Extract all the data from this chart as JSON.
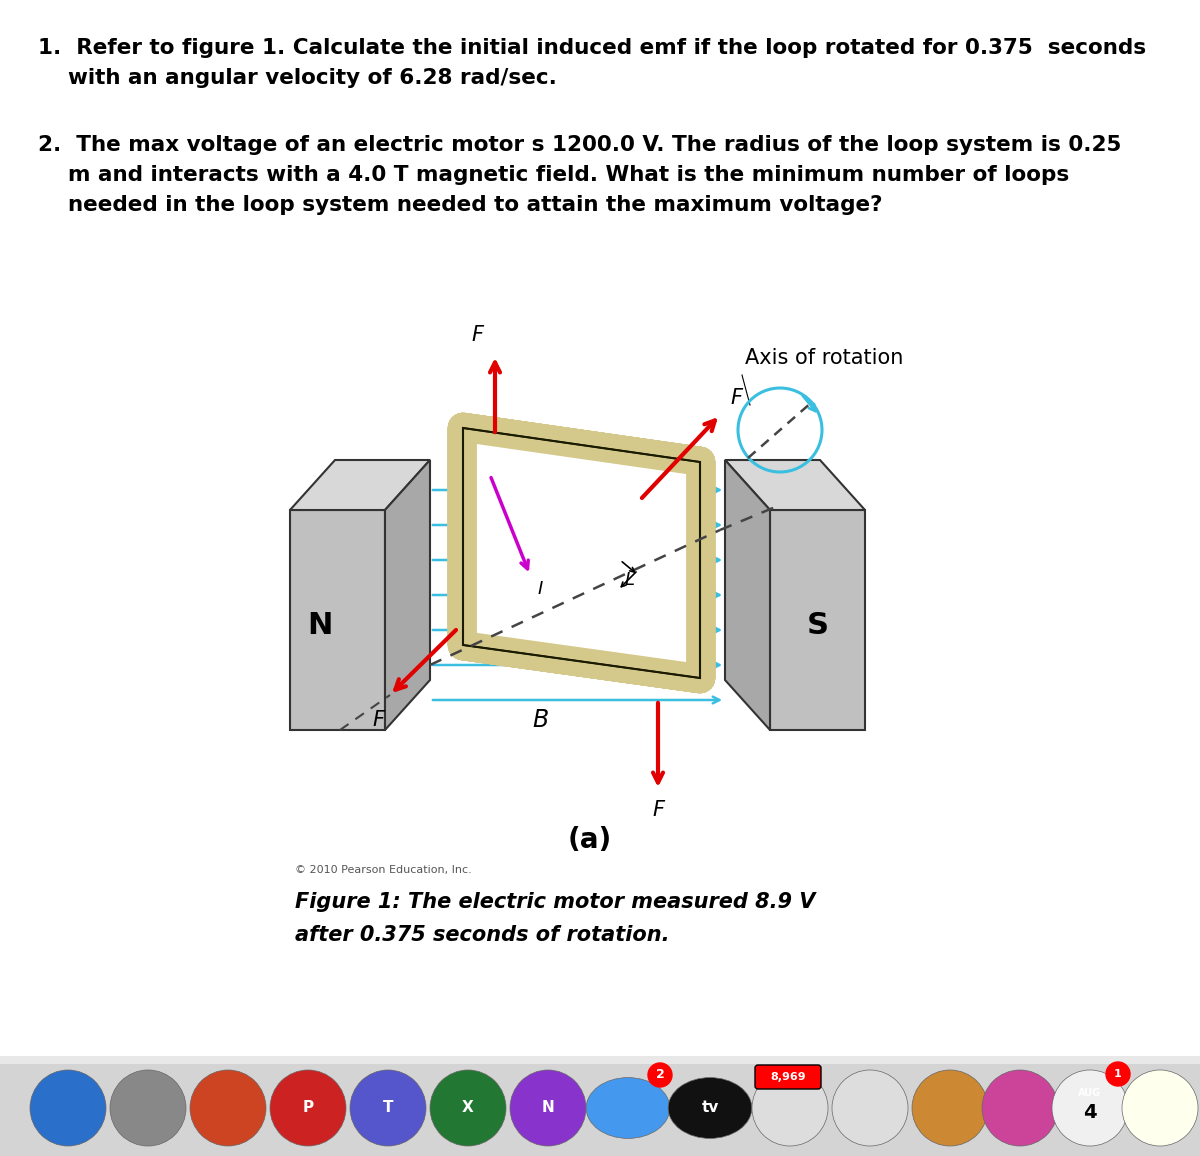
{
  "bg_color": "#ffffff",
  "q1_line1": "1.  Refer to figure 1. Calculate the initial induced emf if the loop rotated for 0.375  seconds",
  "q1_line2": "    with an angular velocity of 6.28 rad/sec.",
  "q2_line1": "2.  The max voltage of an electric motor s 1200.0 V. The radius of the loop system is 0.25",
  "q2_line2": "    m and interacts with a 4.0 T magnetic field. What is the minimum number of loops",
  "q2_line3": "    needed in the loop system needed to attain the maximum voltage?",
  "label_a": "(a)",
  "copyright": "© 2010 Pearson Education, Inc.",
  "caption_line1": "Figure 1: The electric motor measured 8.9 V",
  "caption_line2": "after 0.375 seconds of rotation.",
  "axis_of_rotation": "Axis of rotation",
  "label_N": "N",
  "label_S": "S",
  "label_B": "B",
  "label_F": "F",
  "label_I": "I",
  "label_L": "L",
  "arrow_red": "#e00000",
  "arrow_blue": "#3bbfe0",
  "magnet_color_face": "#b0b0b0",
  "magnet_color_top": "#cccccc",
  "magnet_color_side": "#989898",
  "loop_color": "#d4c88a",
  "loop_edge": "#1a1a00",
  "magenta_color": "#cc00cc",
  "dashed_color": "#444444",
  "text_color": "#000000",
  "q_fontsize": 15.5,
  "caption_fontsize": 15,
  "label_a_fontsize": 20
}
